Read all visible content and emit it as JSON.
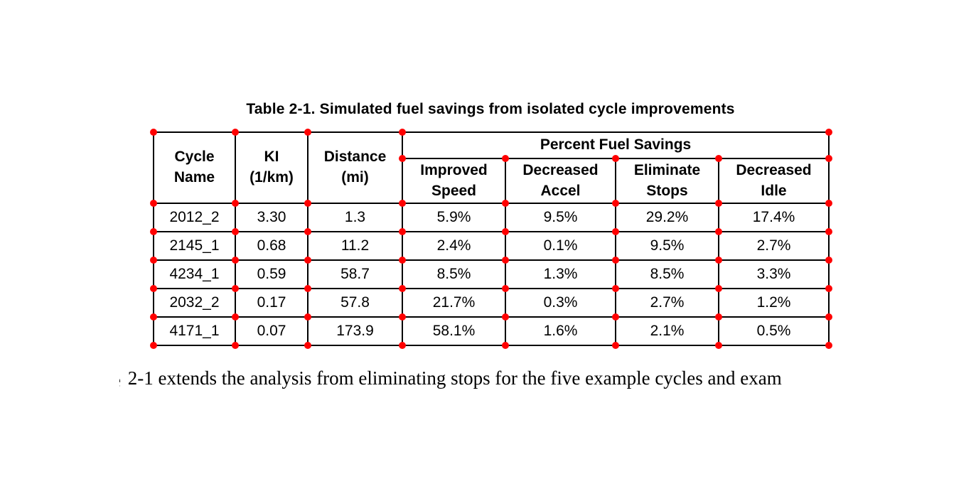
{
  "page": {
    "caption": "Table 2-1. Simulated fuel savings from isolated cycle improvements",
    "body_text": "2-1 extends the analysis from eliminating stops for the five example cycles and exam",
    "body_text_clipped_prefix": "e"
  },
  "table": {
    "group_header": "Percent Fuel Savings",
    "columns": [
      {
        "key": "cycle-name",
        "label": "Cycle\nName"
      },
      {
        "key": "ki",
        "label": "KI\n(1/km)"
      },
      {
        "key": "distance",
        "label": "Distance\n(mi)"
      },
      {
        "key": "improved-speed",
        "label": "Improved\nSpeed"
      },
      {
        "key": "decreased-accel",
        "label": "Decreased\nAccel"
      },
      {
        "key": "eliminate-stops",
        "label": "Eliminate\nStops"
      },
      {
        "key": "decreased-idle",
        "label": "Decreased\nIdle"
      }
    ],
    "rows": [
      [
        "2012_2",
        "3.30",
        "1.3",
        "5.9%",
        "9.5%",
        "29.2%",
        "17.4%"
      ],
      [
        "2145_1",
        "0.68",
        "11.2",
        "2.4%",
        "0.1%",
        "9.5%",
        "2.7%"
      ],
      [
        "4234_1",
        "0.59",
        "58.7",
        "8.5%",
        "1.3%",
        "8.5%",
        "3.3%"
      ],
      [
        "2032_2",
        "0.17",
        "57.8",
        "21.7%",
        "0.3%",
        "2.7%",
        "1.2%"
      ],
      [
        "4171_1",
        "0.07",
        "173.9",
        "58.1%",
        "1.6%",
        "2.1%",
        "0.5%"
      ]
    ]
  },
  "annotation": {
    "dot_color": "#ff0000"
  }
}
